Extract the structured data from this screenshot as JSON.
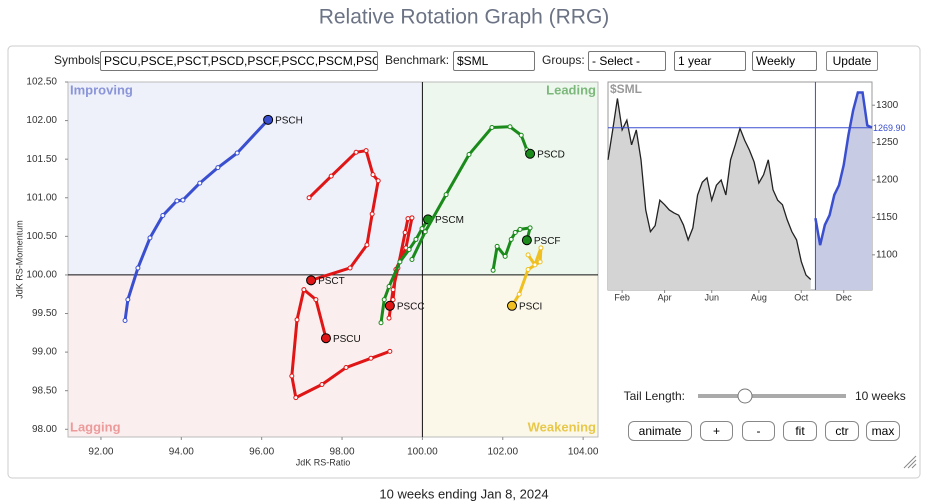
{
  "header": {
    "title": "Relative Rotation Graph (RRG)"
  },
  "controls": {
    "symbols_label": "Symbols:",
    "symbols": "PSCU,PSCE,PSCT,PSCD,PSCF,PSCC,PSCM,PSC",
    "benchmark_label": "Benchmark:",
    "benchmark": "$SML",
    "groups_label": "Groups:",
    "groups": "- Select -",
    "period": "1 year",
    "interval": "Weekly",
    "update": "Update"
  },
  "chart_data": [
    {
      "type": "rrg",
      "x_label": "JdK RS-Ratio",
      "y_label": "JdK RS-Momentum",
      "quadrants": {
        "improving": "Improving",
        "leading": "Leading",
        "lagging": "Lagging",
        "weakening": "Weakening"
      },
      "center": 100,
      "xlim": [
        91.18,
        104.37
      ],
      "ylim": [
        97.9,
        102.5
      ],
      "xticks": [
        {
          "value": 92,
          "label": "92.00"
        },
        {
          "value": 94,
          "label": "94.00"
        },
        {
          "value": 96,
          "label": "96.00"
        },
        {
          "value": 98,
          "label": "98.00"
        },
        {
          "value": 100,
          "label": "100.00"
        },
        {
          "value": 102,
          "label": "102.00"
        },
        {
          "value": 104,
          "label": "104.00"
        }
      ],
      "yticks": [
        {
          "value": 98,
          "label": "98.00"
        },
        {
          "value": 98.5,
          "label": "98.50"
        },
        {
          "value": 99,
          "label": "99.00"
        },
        {
          "value": 99.5,
          "label": "99.50"
        },
        {
          "value": 100,
          "label": "100.00"
        },
        {
          "value": 100.5,
          "label": "100.50"
        },
        {
          "value": 101,
          "label": "101.00"
        },
        {
          "value": 101.5,
          "label": "101.50"
        },
        {
          "value": 102,
          "label": "102.00"
        },
        {
          "value": 102.5,
          "label": "102.50"
        }
      ],
      "series": [
        {
          "name": "PSCH",
          "color": "#3a4fcf",
          "x": [
            92.6,
            92.67,
            92.92,
            93.22,
            93.54,
            93.89,
            94.04,
            94.46,
            94.91,
            95.39,
            96.16
          ],
          "y": [
            99.41,
            99.68,
            100.09,
            100.48,
            100.77,
            100.96,
            100.97,
            101.19,
            101.39,
            101.58,
            102.01
          ]
        },
        {
          "name": "PSCT",
          "color": "#e01515",
          "x": [
            97.18,
            97.73,
            98.35,
            98.6,
            98.77,
            98.9,
            98.75,
            98.62,
            98.2,
            97.23
          ],
          "y": [
            101.0,
            101.28,
            101.59,
            101.61,
            101.3,
            101.22,
            100.79,
            100.39,
            100.09,
            99.93
          ]
        },
        {
          "name": "PSCU",
          "color": "#e01515",
          "x": [
            99.19,
            98.72,
            98.1,
            97.5,
            96.85,
            96.75,
            96.88,
            97.05,
            97.35,
            97.6
          ],
          "y": [
            99.01,
            98.92,
            98.8,
            98.58,
            98.41,
            98.69,
            99.42,
            99.81,
            99.68,
            99.18
          ]
        },
        {
          "name": "PSCC",
          "color": "#e01515",
          "x": [
            99.17,
            99.27,
            99.39,
            99.57,
            99.64,
            99.74,
            99.59,
            99.34,
            99.27,
            99.19
          ],
          "y": [
            99.44,
            99.81,
            100.09,
            100.55,
            100.73,
            100.74,
            100.35,
            100.07,
            99.68,
            99.6
          ]
        },
        {
          "name": "PSCM",
          "color": "#1a8a1a",
          "x": [
            98.97,
            99.05,
            99.17,
            99.44,
            99.67,
            99.84,
            99.99,
            100.14
          ],
          "y": [
            99.38,
            99.68,
            99.85,
            100.17,
            100.33,
            100.46,
            100.6,
            100.72
          ]
        },
        {
          "name": "PSCD",
          "color": "#1a8a1a",
          "x": [
            99.74,
            100.07,
            100.59,
            101.16,
            101.73,
            102.18,
            102.46,
            102.6,
            102.68
          ],
          "y": [
            100.2,
            100.56,
            101.04,
            101.56,
            101.91,
            101.92,
            101.81,
            101.62,
            101.57
          ]
        },
        {
          "name": "PSCF",
          "color": "#1a8a1a",
          "x": [
            101.76,
            101.86,
            102.06,
            102.21,
            102.31,
            102.43,
            102.68,
            102.6
          ],
          "y": [
            100.06,
            100.37,
            100.24,
            100.46,
            100.55,
            100.59,
            100.61,
            100.45
          ]
        },
        {
          "name": "PSCI",
          "color": "#f0c020",
          "x": [
            102.63,
            102.8,
            102.95,
            102.93,
            102.63,
            102.41,
            102.23
          ],
          "y": [
            100.26,
            100.13,
            100.35,
            100.17,
            100.07,
            99.75,
            99.6
          ]
        }
      ]
    },
    {
      "type": "line",
      "title": "$SML",
      "xlim": [
        0,
        56
      ],
      "ylim": [
        1053,
        1331
      ],
      "xticks": [
        {
          "value": 3,
          "label": "Feb"
        },
        {
          "value": 12,
          "label": "Apr"
        },
        {
          "value": 22,
          "label": "Jun"
        },
        {
          "value": 32,
          "label": "Aug"
        },
        {
          "value": 41,
          "label": "Oct"
        },
        {
          "value": 50,
          "label": "Dec"
        }
      ],
      "yticks": [
        1100,
        1150,
        1200,
        1250,
        1300
      ],
      "last": {
        "value": 1269.9,
        "label": "1269.90"
      },
      "series": [
        {
          "color": "#222222",
          "fill": "#d4d4d4",
          "values": [
            1227,
            1267,
            1309,
            1267,
            1280,
            1247,
            1267,
            1227,
            1160,
            1131,
            1139,
            1173,
            1167,
            1160,
            1156,
            1153,
            1140,
            1120,
            1136,
            1180,
            1197,
            1203,
            1173,
            1193,
            1200,
            1180,
            1227,
            1247,
            1269,
            1253,
            1240,
            1224,
            1196,
            1207,
            1227,
            1187,
            1173,
            1167,
            1147,
            1131,
            1120,
            1091,
            1073,
            1067,
            null,
            null,
            null,
            null,
            null,
            null,
            null,
            null,
            null,
            null,
            null,
            null,
            null
          ]
        },
        {
          "color": "#3a4fcf",
          "fill": "#c7cbe4",
          "values": [
            null,
            null,
            null,
            null,
            null,
            null,
            null,
            null,
            null,
            null,
            null,
            null,
            null,
            null,
            null,
            null,
            null,
            null,
            null,
            null,
            null,
            null,
            null,
            null,
            null,
            null,
            null,
            null,
            null,
            null,
            null,
            null,
            null,
            null,
            null,
            null,
            null,
            null,
            null,
            null,
            null,
            null,
            null,
            null,
            1149,
            1113,
            1140,
            1153,
            1180,
            1193,
            1220,
            1260,
            1293,
            1317,
            1317,
            1273,
            1270
          ]
        }
      ]
    }
  ],
  "tail": {
    "label": "Tail Length:",
    "value_label": "10 weeks"
  },
  "buttons": [
    "animate",
    "+",
    "-",
    "fit",
    "ctr",
    "max"
  ],
  "footer": "10 weeks ending Jan 8, 2024"
}
